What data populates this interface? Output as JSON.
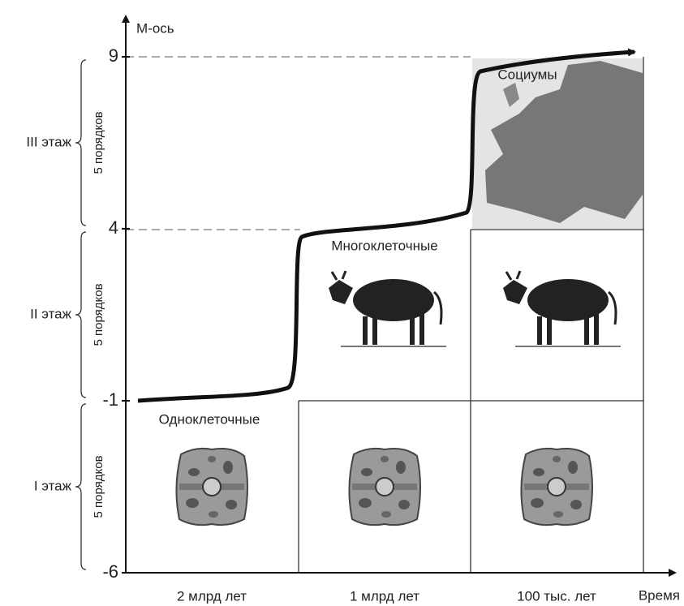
{
  "axes": {
    "y_label": "М-ось",
    "x_label": "Время",
    "y_ticks": [
      9,
      4,
      -1,
      -6
    ]
  },
  "floors": [
    {
      "name": "III этаж",
      "span": "5 порядков"
    },
    {
      "name": "II этаж",
      "span": "5 порядков"
    },
    {
      "name": "I этаж",
      "span": "5 порядков"
    }
  ],
  "columns": [
    "2 млрд лет",
    "1 млрд лет",
    "100 тыс. лет"
  ],
  "regions": [
    "Одноклеточные",
    "Многоклеточные",
    "Социумы"
  ]
}
